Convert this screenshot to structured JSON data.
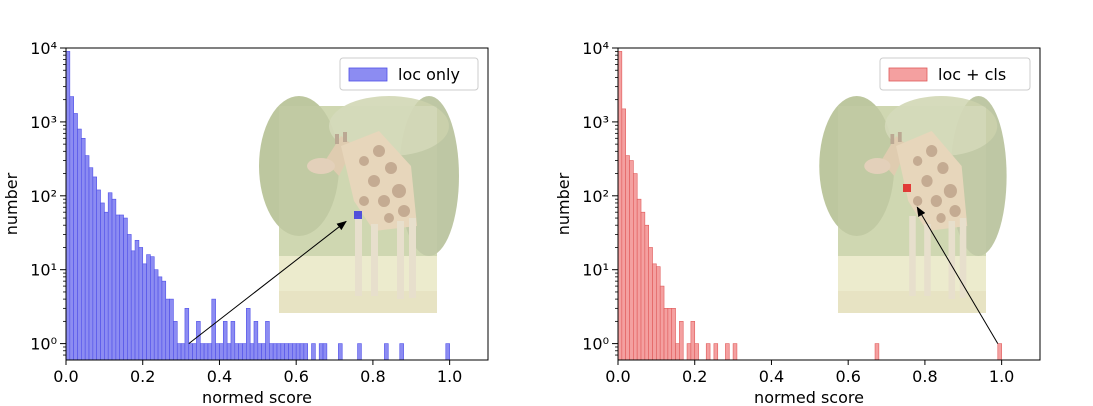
{
  "chart_data": [
    {
      "type": "histogram",
      "title": "",
      "xlabel": "normed score",
      "ylabel": "number",
      "xlim": [
        0.0,
        1.1
      ],
      "ylim": [
        0.6,
        10000
      ],
      "yscale": "log",
      "grid": false,
      "legend_position": "top-right",
      "xticks": [
        0.0,
        0.2,
        0.4,
        0.6,
        0.8,
        1.0
      ],
      "xtick_labels": [
        "0.0",
        "0.2",
        "0.4",
        "0.6",
        "0.8",
        "1.0"
      ],
      "yticks": [
        1,
        10,
        100,
        1000,
        10000
      ],
      "ytick_labels": [
        "10⁰",
        "10¹",
        "10²",
        "10³",
        "10⁴"
      ],
      "bin_width": 0.01,
      "series": [
        {
          "name": "loc only",
          "color": "#8c8cf2",
          "edge_color": "#4f4fe8",
          "bin_starts": [
            0.0,
            0.01,
            0.02,
            0.03,
            0.04,
            0.05,
            0.06,
            0.07,
            0.08,
            0.09,
            0.1,
            0.11,
            0.12,
            0.13,
            0.14,
            0.15,
            0.16,
            0.17,
            0.18,
            0.19,
            0.2,
            0.21,
            0.22,
            0.23,
            0.24,
            0.25,
            0.26,
            0.27,
            0.28,
            0.29,
            0.3,
            0.31,
            0.32,
            0.33,
            0.34,
            0.35,
            0.36,
            0.37,
            0.38,
            0.39,
            0.4,
            0.41,
            0.42,
            0.43,
            0.44,
            0.45,
            0.46,
            0.47,
            0.48,
            0.49,
            0.5,
            0.51,
            0.52,
            0.53,
            0.54,
            0.55,
            0.56,
            0.57,
            0.58,
            0.59,
            0.6,
            0.61,
            0.62,
            0.64,
            0.66,
            0.67,
            0.71,
            0.76,
            0.83,
            0.87,
            0.99
          ],
          "counts": [
            9000,
            2200,
            1300,
            800,
            600,
            350,
            240,
            180,
            120,
            80,
            60,
            110,
            90,
            55,
            55,
            50,
            30,
            18,
            25,
            20,
            12,
            16,
            15,
            10,
            8,
            7,
            4,
            4,
            2,
            1,
            1,
            3,
            1,
            1,
            2,
            1,
            1,
            1,
            4,
            1,
            1,
            2,
            1,
            2,
            1,
            1,
            1,
            3,
            1,
            2,
            1,
            1,
            2,
            1,
            1,
            1,
            1,
            1,
            1,
            1,
            1,
            1,
            1,
            1,
            1,
            1,
            1,
            1,
            1,
            1,
            1
          ]
        }
      ],
      "annotation": {
        "from": [
          0.32,
          1.0
        ],
        "to": [
          0.73,
          45
        ],
        "image": "giraffe-photo"
      }
    },
    {
      "type": "histogram",
      "title": "",
      "xlabel": "normed score",
      "ylabel": "number",
      "xlim": [
        0.0,
        1.1
      ],
      "ylim": [
        0.6,
        10000
      ],
      "yscale": "log",
      "grid": false,
      "legend_position": "top-right",
      "xticks": [
        0.0,
        0.2,
        0.4,
        0.6,
        0.8,
        1.0
      ],
      "xtick_labels": [
        "0.0",
        "0.2",
        "0.4",
        "0.6",
        "0.8",
        "1.0"
      ],
      "yticks": [
        1,
        10,
        100,
        1000,
        10000
      ],
      "ytick_labels": [
        "10⁰",
        "10¹",
        "10²",
        "10³",
        "10⁴"
      ],
      "bin_width": 0.01,
      "series": [
        {
          "name": "loc + cls",
          "color": "#f4a0a0",
          "edge_color": "#e05a5a",
          "bin_starts": [
            0.0,
            0.01,
            0.02,
            0.03,
            0.04,
            0.05,
            0.06,
            0.07,
            0.08,
            0.09,
            0.1,
            0.11,
            0.12,
            0.13,
            0.14,
            0.15,
            0.16,
            0.18,
            0.19,
            0.2,
            0.23,
            0.25,
            0.28,
            0.3,
            0.67,
            0.99
          ],
          "counts": [
            9000,
            1500,
            350,
            300,
            200,
            90,
            60,
            40,
            20,
            12,
            11,
            6,
            3,
            3,
            3,
            1,
            2,
            1,
            2,
            1,
            1,
            1,
            1,
            1,
            1,
            1
          ]
        }
      ],
      "annotation": {
        "from": [
          0.99,
          1.0
        ],
        "to": [
          0.78,
          70
        ],
        "image": "giraffe-photo"
      }
    }
  ]
}
